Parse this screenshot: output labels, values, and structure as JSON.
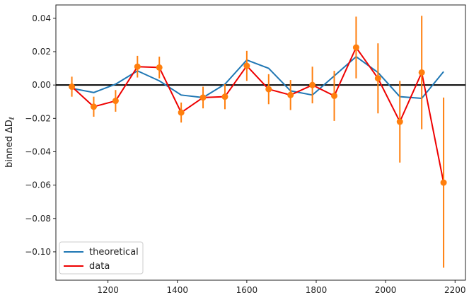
{
  "chart_data": {
    "type": "line",
    "title": "",
    "xlabel": "",
    "ylabel": "binned ΔD",
    "ylabel_subscript": "ℓ",
    "xlim": [
      1050,
      2230
    ],
    "ylim": [
      -0.117,
      0.048
    ],
    "xticks": [
      1200,
      1400,
      1600,
      1800,
      2000,
      2200
    ],
    "xtick_labels": [
      "1200",
      "1400",
      "1600",
      "1800",
      "2000",
      "2200"
    ],
    "yticks": [
      0.04,
      0.02,
      0.0,
      -0.02,
      -0.04,
      -0.06,
      -0.08,
      -0.1
    ],
    "ytick_labels": [
      "0.04",
      "0.02",
      "0.00",
      "−0.02",
      "−0.04",
      "−0.06",
      "−0.08",
      "−0.10"
    ],
    "zero_line": true,
    "grid": false,
    "legend_position": "lower-left",
    "x": [
      1096,
      1159,
      1222,
      1285,
      1348,
      1411,
      1474,
      1537,
      1600,
      1663,
      1726,
      1789,
      1852,
      1915,
      1978,
      2041,
      2104,
      2167
    ],
    "series": [
      {
        "name": "theoretical",
        "color": "#1f77b4",
        "values": [
          -0.002,
          -0.0045,
          0.0005,
          0.0085,
          0.0025,
          -0.006,
          -0.0075,
          0.0005,
          0.015,
          0.01,
          -0.0035,
          -0.006,
          0.0055,
          0.017,
          0.0075,
          -0.007,
          -0.008,
          0.008
        ]
      },
      {
        "name": "data",
        "color": "#ee0000",
        "values": [
          -0.001,
          -0.013,
          -0.0095,
          0.011,
          0.0105,
          -0.0165,
          -0.0075,
          -0.007,
          0.0115,
          -0.0025,
          -0.006,
          0.0,
          -0.0065,
          0.0225,
          0.004,
          -0.022,
          0.0075,
          -0.0585
        ]
      }
    ],
    "errorbars": {
      "color": "#ff7f0e",
      "yerr": [
        0.006,
        0.006,
        0.0065,
        0.0065,
        0.0065,
        0.006,
        0.0065,
        0.0075,
        0.009,
        0.009,
        0.009,
        0.011,
        0.015,
        0.0185,
        0.021,
        0.0245,
        0.034,
        0.051
      ]
    }
  }
}
